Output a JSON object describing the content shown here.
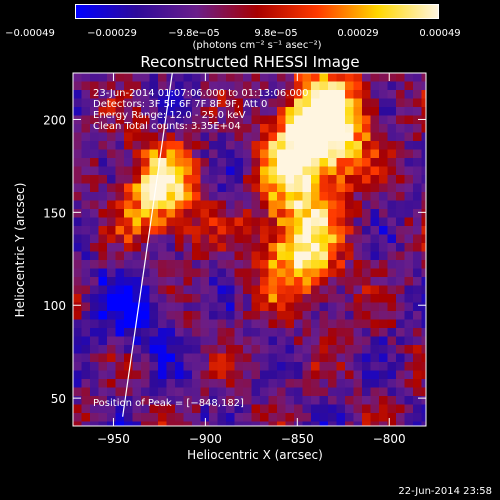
{
  "colorbar": {
    "gradient": [
      "#0000ff",
      "#2e0a9a",
      "#6a1e8a",
      "#a80000",
      "#ff3a00",
      "#ffd700",
      "#fff5e0"
    ],
    "ticks": [
      "−0.00049",
      "−0.00029",
      "−9.8e−05",
      "9.8e−05",
      "0.00029",
      "0.00049"
    ],
    "unit": "(photons cm⁻² s⁻¹ asec⁻²)"
  },
  "plot": {
    "title": "Reconstructed RHESSI Image",
    "annotations": [
      "23-Jun-2014 01:07:06.000 to 01:13:06.000",
      "Detectors: 3F 5F 6F 7F 8F 9F, Att 0",
      "Energy Range: 12.0 - 25.0 keV",
      "Clean     Total counts: 3.35E+04"
    ],
    "peak_label": "Position of Peak = [−848,182]",
    "timestamp": "22-Jun-2014 23:58"
  },
  "chart_data": {
    "type": "heatmap",
    "title": "Reconstructed RHESSI Image",
    "xlabel": "Heliocentric X (arcsec)",
    "ylabel": "Heliocentric Y (arcsec)",
    "xlim": [
      -972,
      -780
    ],
    "ylim": [
      35,
      225
    ],
    "xticks": [
      -950,
      -900,
      -850,
      -800
    ],
    "yticks": [
      50,
      100,
      150,
      200
    ],
    "color_range": [
      -0.00049,
      0.00049
    ],
    "bright_regions": [
      {
        "x": -925,
        "y": 160,
        "level": 0.85
      },
      {
        "x": -848,
        "y": 182,
        "level": 1.0
      },
      {
        "x": -850,
        "y": 130,
        "level": 0.9
      },
      {
        "x": -830,
        "y": 200,
        "level": 0.8
      }
    ],
    "dark_regions": [
      {
        "x": -940,
        "y": 100,
        "level": -0.9
      },
      {
        "x": -890,
        "y": 195,
        "level": -0.5
      }
    ],
    "limb_line": [
      [
        -945,
        40
      ],
      [
        -918,
        225
      ]
    ]
  }
}
